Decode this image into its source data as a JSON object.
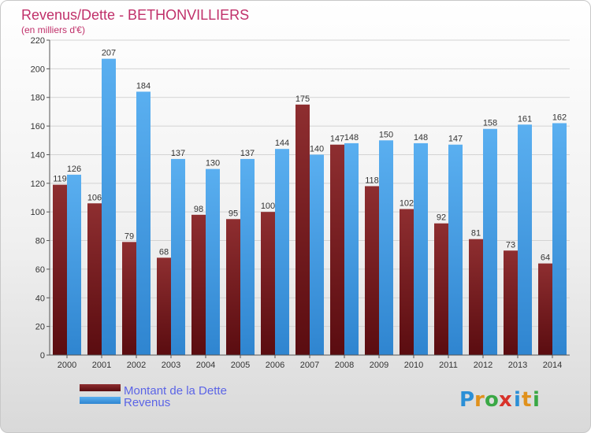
{
  "chart_data": {
    "type": "bar",
    "title": "Revenus/Dette - BETHONVILLIERS",
    "subtitle": "(en milliers d'€)",
    "categories": [
      "2000",
      "2001",
      "2002",
      "2003",
      "2004",
      "2005",
      "2006",
      "2007",
      "2008",
      "2009",
      "2010",
      "2011",
      "2012",
      "2013",
      "2014"
    ],
    "series": [
      {
        "name": "Montant de la Dette",
        "color": "#8b2a2a",
        "values": [
          119,
          106,
          79,
          68,
          98,
          95,
          100,
          175,
          147,
          118,
          102,
          92,
          81,
          73,
          64
        ]
      },
      {
        "name": "Revenus",
        "color": "#4aa3e8",
        "values": [
          126,
          207,
          184,
          137,
          130,
          137,
          144,
          140,
          148,
          150,
          148,
          147,
          158,
          161,
          162
        ]
      }
    ],
    "ylim": [
      0,
      220
    ],
    "yticks": [
      "0",
      "20",
      "40",
      "60",
      "80",
      "100",
      "120",
      "140",
      "160",
      "180",
      "200",
      "220"
    ],
    "grid": true,
    "legend_position": "bottom-left",
    "logo": "Proxiti"
  }
}
